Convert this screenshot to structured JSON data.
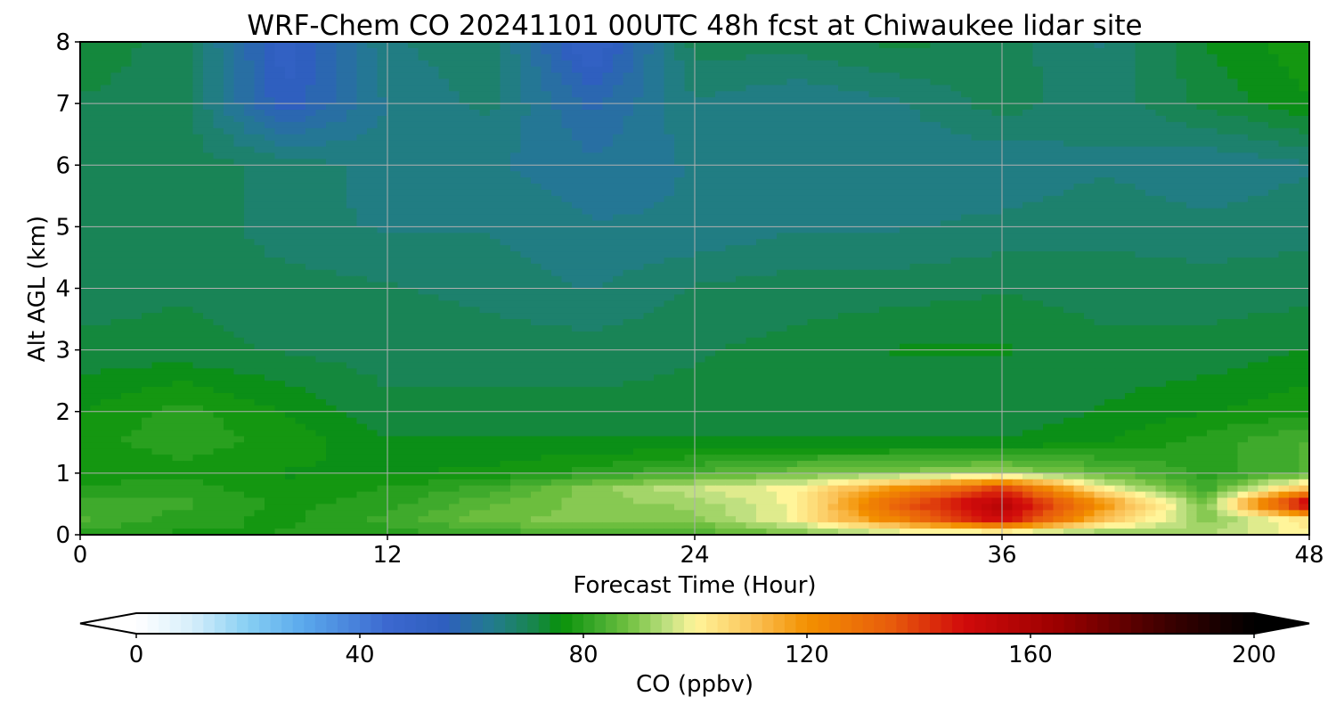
{
  "chart_data": {
    "type": "heatmap",
    "title": "WRF-Chem CO  20241101 00UTC 48h fcst at Chiwaukee lidar site",
    "xlabel": "Forecast Time (Hour)",
    "ylabel": "Alt AGL (km)",
    "xlim": [
      0,
      48
    ],
    "ylim": [
      0,
      8
    ],
    "xticks": [
      0,
      12,
      24,
      36,
      48
    ],
    "yticks": [
      0,
      1,
      2,
      3,
      4,
      5,
      6,
      7,
      8
    ],
    "grid": true,
    "x": [
      0,
      4,
      8,
      12,
      16,
      20,
      24,
      28,
      32,
      36,
      40,
      44,
      48
    ],
    "y": [
      0,
      0.25,
      0.5,
      0.75,
      1,
      1.5,
      2,
      3,
      4,
      5,
      6,
      7,
      8
    ],
    "z": [
      [
        80,
        78,
        79,
        80,
        82,
        84,
        84,
        88,
        92,
        90,
        88,
        94,
        100
      ],
      [
        84,
        80,
        78,
        82,
        88,
        90,
        90,
        100,
        125,
        150,
        110,
        90,
        104
      ],
      [
        83,
        82,
        78,
        80,
        86,
        90,
        92,
        100,
        135,
        158,
        120,
        88,
        160
      ],
      [
        80,
        80,
        77,
        79,
        82,
        90,
        96,
        100,
        120,
        140,
        100,
        82,
        112
      ],
      [
        76,
        78,
        76,
        76,
        77,
        80,
        84,
        88,
        90,
        92,
        86,
        80,
        84
      ],
      [
        78,
        80,
        78,
        74,
        74,
        74,
        74,
        74,
        74,
        74,
        76,
        80,
        84
      ],
      [
        76,
        80,
        76,
        72,
        72,
        72,
        72,
        72,
        72,
        72,
        74,
        76,
        78
      ],
      [
        72,
        72,
        71,
        70,
        70,
        70,
        71,
        72,
        74,
        74,
        72,
        72,
        74
      ],
      [
        70,
        71,
        70,
        69,
        68,
        66,
        69,
        70,
        70,
        71,
        70,
        70,
        70
      ],
      [
        71,
        71,
        67,
        66,
        66,
        64,
        64,
        66,
        66,
        67,
        68,
        67,
        68
      ],
      [
        71,
        70,
        68,
        65,
        64,
        62,
        64,
        64,
        64,
        64,
        66,
        64,
        66
      ],
      [
        71,
        70,
        54,
        64,
        67,
        58,
        66,
        64,
        66,
        70,
        67,
        72,
        76
      ],
      [
        73,
        70,
        52,
        66,
        68,
        50,
        70,
        70,
        72,
        70,
        66,
        74,
        78
      ]
    ],
    "colorbar": {
      "label": "CO  (ppbv)",
      "min": 0,
      "max": 200,
      "ticks": [
        0,
        40,
        80,
        120,
        160,
        200
      ],
      "extend": "both",
      "stops": [
        {
          "v": 0,
          "c": "#ffffff"
        },
        {
          "v": 10,
          "c": "#d6eefb"
        },
        {
          "v": 20,
          "c": "#86cff3"
        },
        {
          "v": 30,
          "c": "#5aa8ec"
        },
        {
          "v": 45,
          "c": "#3c68cf"
        },
        {
          "v": 55,
          "c": "#2f5fbf"
        },
        {
          "v": 64,
          "c": "#227c8c"
        },
        {
          "v": 72,
          "c": "#168744"
        },
        {
          "v": 76,
          "c": "#079108"
        },
        {
          "v": 82,
          "c": "#3aa82a"
        },
        {
          "v": 88,
          "c": "#70c040"
        },
        {
          "v": 95,
          "c": "#bfe080"
        },
        {
          "v": 100,
          "c": "#fff59a"
        },
        {
          "v": 110,
          "c": "#fbc45a"
        },
        {
          "v": 120,
          "c": "#f39000"
        },
        {
          "v": 135,
          "c": "#e85c0c"
        },
        {
          "v": 148,
          "c": "#d10b0b"
        },
        {
          "v": 165,
          "c": "#9b0000"
        },
        {
          "v": 185,
          "c": "#3a0000"
        },
        {
          "v": 200,
          "c": "#000000"
        }
      ]
    }
  }
}
